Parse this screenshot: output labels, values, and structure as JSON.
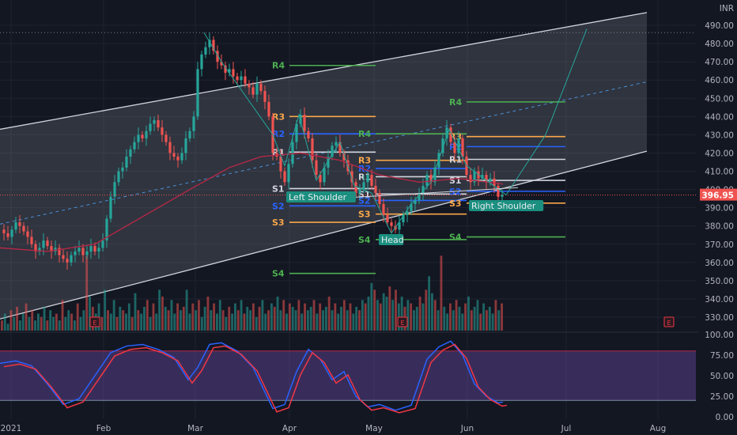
{
  "chart_data": {
    "type": "candlestick",
    "currency": "INR",
    "last_price": "396.95",
    "y_ticks": [
      "490.00",
      "480.00",
      "470.00",
      "460.00",
      "450.00",
      "440.00",
      "430.00",
      "420.00",
      "410.00",
      "400.00",
      "390.00",
      "380.00",
      "370.00",
      "360.00",
      "350.00",
      "340.00",
      "330.00"
    ],
    "x_ticks": [
      "2021",
      "Feb",
      "Mar",
      "Apr",
      "May",
      "Jun",
      "Jul",
      "Aug"
    ],
    "osc_ticks": [
      "100.00",
      "75.00",
      "50.00",
      "25.00",
      "0.00"
    ],
    "osc_band": [
      20,
      80
    ],
    "pivot_levels_left": {
      "R4": 468,
      "R3": 440,
      "R2": 430.5,
      "R1": 420.5,
      "S1": 400.5,
      "S2": 391,
      "S3": 382,
      "S4": 354
    },
    "pivot_levels_mid": {
      "R4": 430.5,
      "R3": 416,
      "R2": 411.5,
      "R1": 407,
      "S1": 397.5,
      "S2": 394,
      "S3": 386.5,
      "S4": 372.5
    },
    "pivot_levels_right": {
      "R4": 448,
      "R3": 429,
      "R2": 423.5,
      "R1": 416.5,
      "S1": 405,
      "S2": 399,
      "S3": 392.5,
      "S4": 374
    },
    "annotations": [
      "Left Shoulder",
      "Head",
      "Right Shoulder"
    ],
    "earnings_marker": "E",
    "channel_upper": [
      [
        0,
        433
      ],
      [
        818,
        497
      ]
    ],
    "channel_lower": [
      [
        0,
        329
      ],
      [
        818,
        421
      ]
    ],
    "price_path": [
      [
        0,
        378
      ],
      [
        5,
        376
      ],
      [
        10,
        374
      ],
      [
        15,
        378
      ],
      [
        20,
        382
      ],
      [
        25,
        380
      ],
      [
        30,
        377
      ],
      [
        35,
        374
      ],
      [
        40,
        370
      ],
      [
        45,
        366
      ],
      [
        50,
        368
      ],
      [
        55,
        372
      ],
      [
        60,
        369
      ],
      [
        65,
        366
      ],
      [
        70,
        368
      ],
      [
        75,
        364
      ],
      [
        80,
        362
      ],
      [
        85,
        360
      ],
      [
        90,
        364
      ],
      [
        95,
        366
      ],
      [
        100,
        368
      ],
      [
        105,
        364
      ],
      [
        110,
        366
      ],
      [
        115,
        369
      ],
      [
        120,
        366
      ],
      [
        125,
        368
      ],
      [
        130,
        372
      ],
      [
        135,
        384
      ],
      [
        140,
        396
      ],
      [
        145,
        404
      ],
      [
        150,
        410
      ],
      [
        155,
        412
      ],
      [
        160,
        418
      ],
      [
        165,
        422
      ],
      [
        170,
        426
      ],
      [
        175,
        430
      ],
      [
        180,
        428
      ],
      [
        185,
        432
      ],
      [
        190,
        436
      ],
      [
        195,
        438
      ],
      [
        200,
        434
      ],
      [
        205,
        430
      ],
      [
        210,
        426
      ],
      [
        215,
        420
      ],
      [
        220,
        418
      ],
      [
        225,
        416
      ],
      [
        230,
        420
      ],
      [
        235,
        428
      ],
      [
        240,
        432
      ],
      [
        245,
        440
      ],
      [
        250,
        466
      ],
      [
        255,
        474
      ],
      [
        260,
        478
      ],
      [
        265,
        482
      ],
      [
        270,
        476
      ],
      [
        275,
        470
      ],
      [
        280,
        468
      ],
      [
        285,
        464
      ],
      [
        290,
        466
      ],
      [
        295,
        462
      ],
      [
        300,
        460
      ],
      [
        305,
        462
      ],
      [
        310,
        458
      ],
      [
        315,
        456
      ],
      [
        320,
        452
      ],
      [
        325,
        458
      ],
      [
        330,
        454
      ],
      [
        335,
        448
      ],
      [
        340,
        440
      ],
      [
        345,
        420
      ],
      [
        350,
        418
      ],
      [
        355,
        410
      ],
      [
        360,
        404
      ],
      [
        365,
        414
      ],
      [
        370,
        426
      ],
      [
        375,
        436
      ],
      [
        380,
        441
      ],
      [
        385,
        432
      ],
      [
        390,
        428
      ],
      [
        395,
        416
      ],
      [
        400,
        408
      ],
      [
        405,
        404
      ],
      [
        410,
        412
      ],
      [
        415,
        418
      ],
      [
        420,
        424
      ],
      [
        425,
        426
      ],
      [
        430,
        420
      ],
      [
        435,
        416
      ],
      [
        440,
        410
      ],
      [
        445,
        404
      ],
      [
        450,
        398
      ],
      [
        455,
        400
      ],
      [
        460,
        404
      ],
      [
        465,
        408
      ],
      [
        470,
        402
      ],
      [
        475,
        398
      ],
      [
        480,
        392
      ],
      [
        485,
        386
      ],
      [
        490,
        382
      ],
      [
        495,
        380
      ],
      [
        500,
        378
      ],
      [
        505,
        382
      ],
      [
        510,
        386
      ],
      [
        515,
        388
      ],
      [
        520,
        392
      ],
      [
        525,
        394
      ],
      [
        530,
        398
      ],
      [
        535,
        402
      ],
      [
        540,
        408
      ],
      [
        545,
        404
      ],
      [
        550,
        412
      ],
      [
        555,
        420
      ],
      [
        560,
        428
      ],
      [
        565,
        434
      ],
      [
        570,
        426
      ],
      [
        575,
        420
      ],
      [
        580,
        428
      ],
      [
        585,
        418
      ],
      [
        590,
        408
      ],
      [
        595,
        404
      ],
      [
        600,
        410
      ],
      [
        605,
        406
      ],
      [
        610,
        408
      ],
      [
        615,
        404
      ],
      [
        620,
        406
      ],
      [
        625,
        402
      ],
      [
        630,
        396
      ],
      [
        635,
        397
      ]
    ],
    "volume": [
      3,
      5,
      2,
      6,
      4,
      7,
      3,
      5,
      8,
      4,
      6,
      3,
      5,
      4,
      7,
      3,
      6,
      4,
      5,
      3,
      9,
      4,
      6,
      5,
      3,
      8,
      4,
      6,
      22,
      10,
      7,
      5,
      8,
      4,
      12,
      6,
      5,
      9,
      4,
      7,
      6,
      5,
      8,
      4,
      11,
      6,
      5,
      7,
      9,
      4,
      8,
      5,
      12,
      10,
      7,
      6,
      9,
      5,
      8,
      6,
      7,
      12,
      5,
      8,
      6,
      9,
      4,
      7,
      10,
      6,
      8,
      5,
      9,
      6,
      4,
      7,
      5,
      8,
      6,
      9,
      5,
      7,
      6,
      8,
      4,
      7,
      9,
      5,
      6,
      8,
      7,
      10,
      6,
      9,
      5,
      8,
      7,
      6,
      9,
      5,
      8,
      6,
      7,
      9,
      5,
      8,
      6,
      7,
      10,
      6,
      8,
      5,
      7,
      9,
      6,
      8,
      5,
      7,
      6,
      9,
      8,
      10,
      14,
      12,
      9,
      8,
      11,
      10,
      13,
      9,
      12,
      8,
      10,
      7,
      9,
      8,
      6,
      7,
      10,
      8,
      12,
      16,
      11,
      9,
      6,
      22,
      7,
      5,
      8,
      6,
      9,
      7,
      5,
      8,
      10,
      6,
      7,
      9,
      5,
      8,
      6,
      7,
      5,
      9,
      6,
      8
    ]
  }
}
